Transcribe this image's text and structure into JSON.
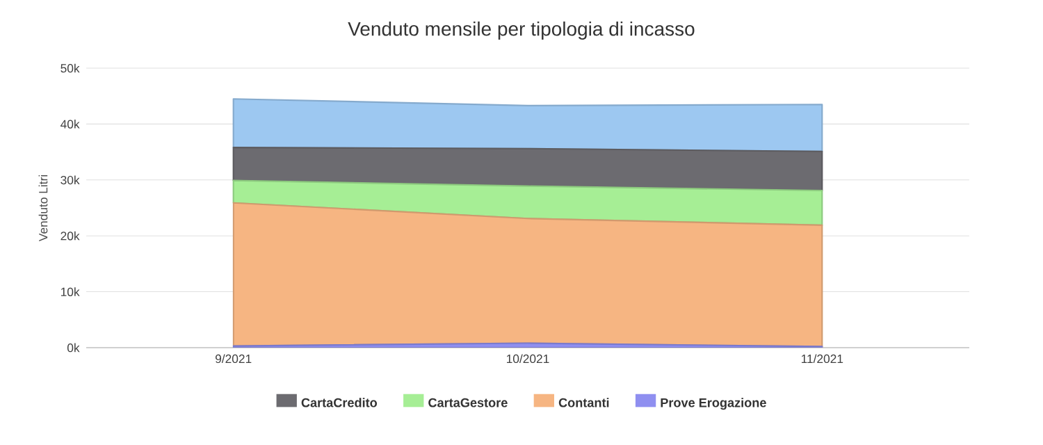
{
  "chart_data": {
    "type": "area",
    "stacked": true,
    "title": "Venduto mensile per tipologia di incasso",
    "ylabel": "Venduto Litri",
    "categories": [
      "9/2021",
      "10/2021",
      "11/2021"
    ],
    "series": [
      {
        "name": "Prove Erogazione",
        "color": "#8f8ff0",
        "values": [
          0.3,
          0.8,
          0.2
        ]
      },
      {
        "name": "Contanti",
        "color": "#f6b582",
        "values": [
          25.6,
          22.3,
          21.7
        ]
      },
      {
        "name": "CartaGestore",
        "color": "#a6ee95",
        "values": [
          4.0,
          5.8,
          6.2
        ]
      },
      {
        "name": "CartaCredito",
        "color": "#6c6b70",
        "values": [
          5.9,
          6.7,
          7.0
        ]
      },
      {
        "color": "#9dc8f1",
        "values": [
          8.7,
          7.7,
          8.4
        ]
      }
    ],
    "ylim": [
      0,
      50
    ],
    "yticks": [
      {
        "value": 0,
        "label": "0k"
      },
      {
        "value": 10,
        "label": "10k"
      },
      {
        "value": 20,
        "label": "20k"
      },
      {
        "value": 30,
        "label": "30k"
      },
      {
        "value": 40,
        "label": "40k"
      },
      {
        "value": 50,
        "label": "50k"
      }
    ],
    "grid": "y",
    "legend": "bottom"
  }
}
